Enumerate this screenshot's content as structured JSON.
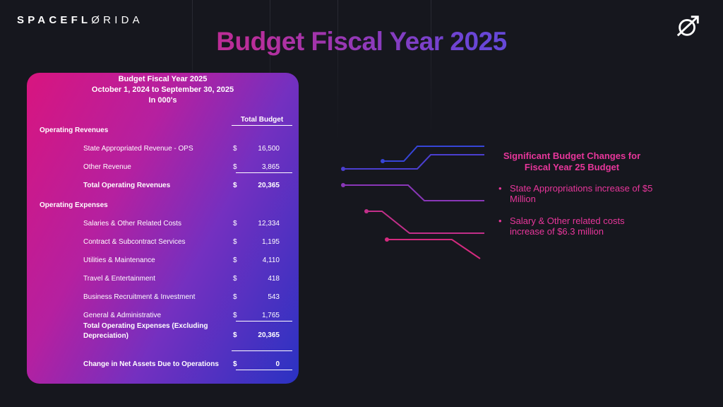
{
  "logo": {
    "text_bold": "SPACEFL",
    "text_o": "Ø",
    "text_thin": "RIDA"
  },
  "title": "Budget Fiscal Year 2025",
  "card": {
    "header_line1": "Budget Fiscal Year 2025",
    "header_line2": "October 1, 2024 to September 30, 2025",
    "header_line3": "In 000's",
    "column_header": "Total Budget",
    "operating_revenues_label": "Operating Revenues",
    "revenues": [
      {
        "label": "State Appropriated Revenue - OPS",
        "currency": "$",
        "value": "16,500"
      },
      {
        "label": "Other Revenue",
        "currency": "$",
        "value": "3,865"
      }
    ],
    "total_revenues": {
      "label": "Total Operating Revenues",
      "currency": "$",
      "value": "20,365"
    },
    "operating_expenses_label": "Operating Expenses",
    "expenses": [
      {
        "label": "Salaries & Other Related Costs",
        "currency": "$",
        "value": "12,334"
      },
      {
        "label": "Contract & Subcontract Services",
        "currency": "$",
        "value": "1,195"
      },
      {
        "label": "Utilities & Maintenance",
        "currency": "$",
        "value": "4,110"
      },
      {
        "label": "Travel & Entertainment",
        "currency": "$",
        "value": "418"
      },
      {
        "label": "Business Recruitment & Investment",
        "currency": "$",
        "value": "543"
      },
      {
        "label": "General & Administrative",
        "currency": "$",
        "value": "1,765"
      }
    ],
    "total_expenses": {
      "label": "Total Operating Expenses (Excluding Depreciation)",
      "currency": "$",
      "value": "20,365"
    },
    "net_change": {
      "label": "Change in Net Assets Due to Operations",
      "currency": "$",
      "value": "0"
    }
  },
  "changes": {
    "title": "Significant Budget Changes for Fiscal Year 25 Budget",
    "bullet_char": "•",
    "items": [
      "State Appropriations increase of $5 Million",
      "Salary & Other related costs increase of $6.3 million"
    ]
  },
  "colors": {
    "background": "#16171e",
    "accent_pink": "#e8369b",
    "accent_blue": "#3a4fe0"
  },
  "icons": {
    "corner": "planet-orbit-arrow-icon"
  }
}
